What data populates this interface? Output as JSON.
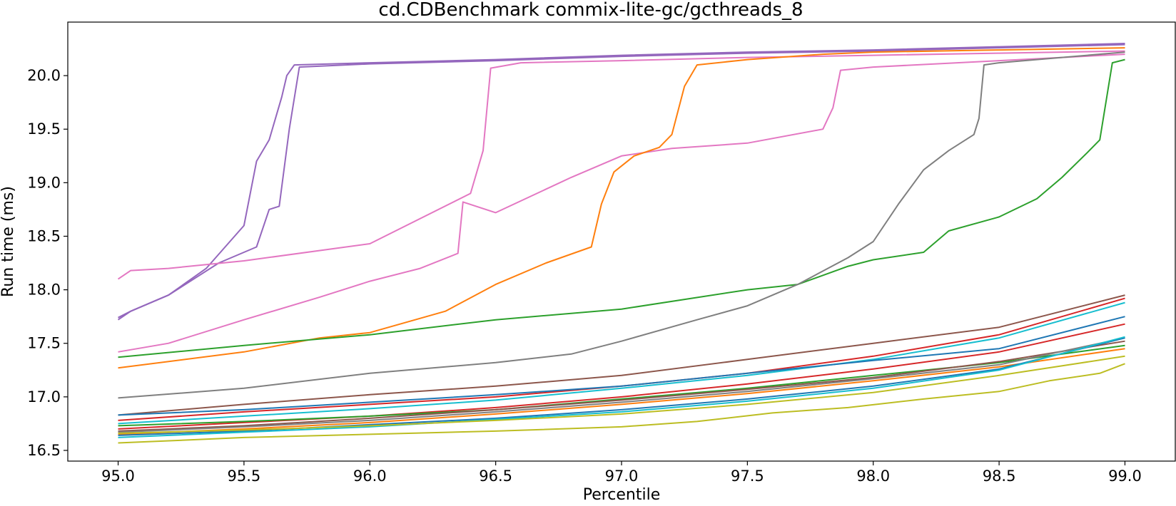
{
  "chart_data": {
    "type": "line",
    "title": "cd.CDBenchmark commix-lite-gc/gcthreads_8",
    "xlabel": "Percentile",
    "ylabel": "Run time (ms)",
    "xlim": [
      94.8,
      99.2
    ],
    "ylim": [
      16.4,
      20.5
    ],
    "xticks": [
      95.0,
      95.5,
      96.0,
      96.5,
      97.0,
      97.5,
      98.0,
      98.5,
      99.0
    ],
    "yticks": [
      16.5,
      17.0,
      17.5,
      18.0,
      18.5,
      19.0,
      19.5,
      20.0
    ],
    "xtick_labels": [
      "95.0",
      "95.5",
      "96.0",
      "96.5",
      "97.0",
      "97.5",
      "98.0",
      "98.5",
      "99.0"
    ],
    "ytick_labels": [
      "16.5",
      "17.0",
      "17.5",
      "18.0",
      "18.5",
      "19.0",
      "19.5",
      "20.0"
    ],
    "grid": false,
    "legend": "none",
    "series": [
      {
        "color": "#9467bd",
        "x": [
          95.0,
          95.05,
          95.2,
          95.35,
          95.5,
          95.55,
          95.6,
          95.65,
          95.67,
          95.7,
          96.0,
          96.5,
          97.0,
          97.5,
          98.0,
          98.5,
          99.0
        ],
        "y": [
          17.74,
          17.8,
          17.95,
          18.2,
          18.6,
          19.2,
          19.4,
          19.8,
          20.0,
          20.1,
          20.12,
          20.15,
          20.19,
          20.22,
          20.24,
          20.27,
          20.3
        ]
      },
      {
        "color": "#9467bd",
        "x": [
          95.0,
          95.05,
          95.2,
          95.4,
          95.55,
          95.6,
          95.64,
          95.68,
          95.72,
          96.0,
          96.5,
          97.0,
          97.5,
          98.0,
          98.5,
          99.0
        ],
        "y": [
          17.72,
          17.8,
          17.95,
          18.25,
          18.4,
          18.75,
          18.78,
          19.5,
          20.08,
          20.11,
          20.14,
          20.18,
          20.21,
          20.23,
          20.26,
          20.29
        ]
      },
      {
        "color": "#e377c2",
        "x": [
          95.0,
          95.05,
          95.2,
          95.5,
          96.0,
          96.4,
          96.45,
          96.48,
          96.6,
          97.0,
          97.5,
          98.0,
          98.5,
          99.0
        ],
        "y": [
          18.1,
          18.18,
          18.2,
          18.27,
          18.43,
          18.9,
          19.3,
          20.07,
          20.12,
          20.14,
          20.17,
          20.19,
          20.21,
          20.23
        ]
      },
      {
        "color": "#e377c2",
        "x": [
          95.0,
          95.2,
          95.5,
          95.8,
          96.0,
          96.2,
          96.35,
          96.37,
          96.5,
          96.8,
          97.0,
          97.2,
          97.5,
          97.8,
          97.84,
          97.87,
          98.0,
          98.5,
          99.0
        ],
        "y": [
          17.42,
          17.5,
          17.72,
          17.93,
          18.08,
          18.2,
          18.34,
          18.82,
          18.72,
          19.05,
          19.25,
          19.32,
          19.37,
          19.5,
          19.7,
          20.05,
          20.08,
          20.14,
          20.2
        ]
      },
      {
        "color": "#ff7f0e",
        "x": [
          95.0,
          95.5,
          95.8,
          96.0,
          96.3,
          96.5,
          96.7,
          96.88,
          96.92,
          96.97,
          97.05,
          97.15,
          97.2,
          97.25,
          97.3,
          97.5,
          97.8,
          98.0,
          98.5,
          99.0
        ],
        "y": [
          17.27,
          17.42,
          17.55,
          17.6,
          17.8,
          18.05,
          18.25,
          18.4,
          18.8,
          19.1,
          19.25,
          19.33,
          19.45,
          19.9,
          20.1,
          20.15,
          20.2,
          20.22,
          20.24,
          20.26
        ]
      },
      {
        "color": "#2ca02c",
        "x": [
          95.0,
          95.5,
          96.0,
          96.5,
          97.0,
          97.5,
          97.7,
          97.9,
          98.0,
          98.2,
          98.3,
          98.5,
          98.65,
          98.75,
          98.85,
          98.9,
          98.95,
          99.0
        ],
        "y": [
          17.37,
          17.48,
          17.58,
          17.72,
          17.82,
          18.0,
          18.05,
          18.22,
          18.28,
          18.35,
          18.55,
          18.68,
          18.85,
          19.05,
          19.28,
          19.4,
          20.12,
          20.15
        ]
      },
      {
        "color": "#7f7f7f",
        "x": [
          95.0,
          95.5,
          96.0,
          96.5,
          96.8,
          97.0,
          97.3,
          97.5,
          97.7,
          97.9,
          98.0,
          98.1,
          98.2,
          98.3,
          98.4,
          98.42,
          98.44,
          98.5,
          98.8,
          99.0
        ],
        "y": [
          16.99,
          17.08,
          17.22,
          17.32,
          17.4,
          17.52,
          17.72,
          17.85,
          18.05,
          18.3,
          18.45,
          18.8,
          19.12,
          19.3,
          19.45,
          19.6,
          20.1,
          20.12,
          20.18,
          20.22
        ]
      },
      {
        "color": "#8c564b",
        "x": [
          95.0,
          95.5,
          96.0,
          96.5,
          97.0,
          97.5,
          98.0,
          98.5,
          99.0
        ],
        "y": [
          16.83,
          16.93,
          17.02,
          17.1,
          17.2,
          17.35,
          17.5,
          17.65,
          17.95
        ]
      },
      {
        "color": "#d62728",
        "x": [
          95.0,
          95.5,
          96.0,
          96.5,
          97.0,
          97.5,
          98.0,
          98.5,
          99.0
        ],
        "y": [
          16.78,
          16.86,
          16.93,
          17.0,
          17.1,
          17.22,
          17.38,
          17.58,
          17.92
        ]
      },
      {
        "color": "#17becf",
        "x": [
          95.0,
          95.5,
          96.0,
          96.5,
          97.0,
          97.5,
          98.0,
          98.5,
          99.0
        ],
        "y": [
          16.75,
          16.82,
          16.89,
          16.97,
          17.08,
          17.2,
          17.35,
          17.55,
          17.88
        ]
      },
      {
        "color": "#1f77b4",
        "x": [
          95.0,
          95.5,
          96.0,
          96.5,
          97.0,
          97.5,
          98.0,
          98.5,
          99.0
        ],
        "y": [
          16.83,
          16.88,
          16.95,
          17.02,
          17.1,
          17.22,
          17.34,
          17.45,
          17.75
        ]
      },
      {
        "color": "#d62728",
        "x": [
          95.0,
          95.5,
          96.0,
          96.5,
          97.0,
          97.5,
          98.0,
          98.5,
          99.0
        ],
        "y": [
          16.7,
          16.76,
          16.82,
          16.9,
          17.0,
          17.12,
          17.26,
          17.42,
          17.68
        ]
      },
      {
        "color": "#2ca02c",
        "x": [
          95.0,
          95.5,
          96.0,
          96.5,
          97.0,
          97.5,
          98.0,
          98.5,
          99.0
        ],
        "y": [
          16.73,
          16.77,
          16.82,
          16.88,
          16.98,
          17.08,
          17.2,
          17.32,
          17.48
        ]
      },
      {
        "color": "#8c564b",
        "x": [
          95.0,
          95.5,
          96.0,
          96.5,
          97.0,
          97.5,
          98.0,
          98.5,
          99.0
        ],
        "y": [
          16.68,
          16.73,
          16.8,
          16.88,
          16.97,
          17.07,
          17.18,
          17.33,
          17.52
        ]
      },
      {
        "color": "#7f7f7f",
        "x": [
          95.0,
          95.5,
          96.0,
          96.5,
          97.0,
          97.5,
          98.0,
          98.5,
          99.0
        ],
        "y": [
          16.67,
          16.72,
          16.78,
          16.86,
          16.95,
          17.05,
          17.17,
          17.3,
          17.55
        ]
      },
      {
        "color": "#ff7f0e",
        "x": [
          95.0,
          95.5,
          96.0,
          96.5,
          97.0,
          97.5,
          98.0,
          98.5,
          99.0
        ],
        "y": [
          16.65,
          16.7,
          16.76,
          16.84,
          16.93,
          17.03,
          17.15,
          17.28,
          17.45
        ]
      },
      {
        "color": "#1f77b4",
        "x": [
          95.0,
          95.5,
          96.0,
          96.5,
          97.0,
          97.5,
          98.0,
          98.5,
          99.0
        ],
        "y": [
          16.64,
          16.68,
          16.74,
          16.8,
          16.88,
          16.98,
          17.1,
          17.26,
          17.55
        ]
      },
      {
        "color": "#17becf",
        "x": [
          95.0,
          95.5,
          96.0,
          96.5,
          97.0,
          97.5,
          98.0,
          98.5,
          99.0
        ],
        "y": [
          16.62,
          16.67,
          16.72,
          16.79,
          16.86,
          16.96,
          17.08,
          17.25,
          17.56
        ]
      },
      {
        "color": "#bcbd22",
        "x": [
          95.0,
          95.5,
          96.0,
          96.5,
          97.0,
          97.5,
          98.0,
          98.5,
          99.0
        ],
        "y": [
          16.66,
          16.69,
          16.73,
          16.78,
          16.84,
          16.93,
          17.04,
          17.2,
          17.38
        ]
      },
      {
        "color": "#bcbd22",
        "x": [
          95.0,
          95.3,
          95.5,
          96.0,
          96.5,
          97.0,
          97.3,
          97.6,
          97.9,
          98.2,
          98.5,
          98.7,
          98.9,
          99.0
        ],
        "y": [
          16.57,
          16.6,
          16.62,
          16.65,
          16.68,
          16.72,
          16.77,
          16.85,
          16.9,
          16.98,
          17.05,
          17.15,
          17.22,
          17.31
        ]
      }
    ]
  }
}
